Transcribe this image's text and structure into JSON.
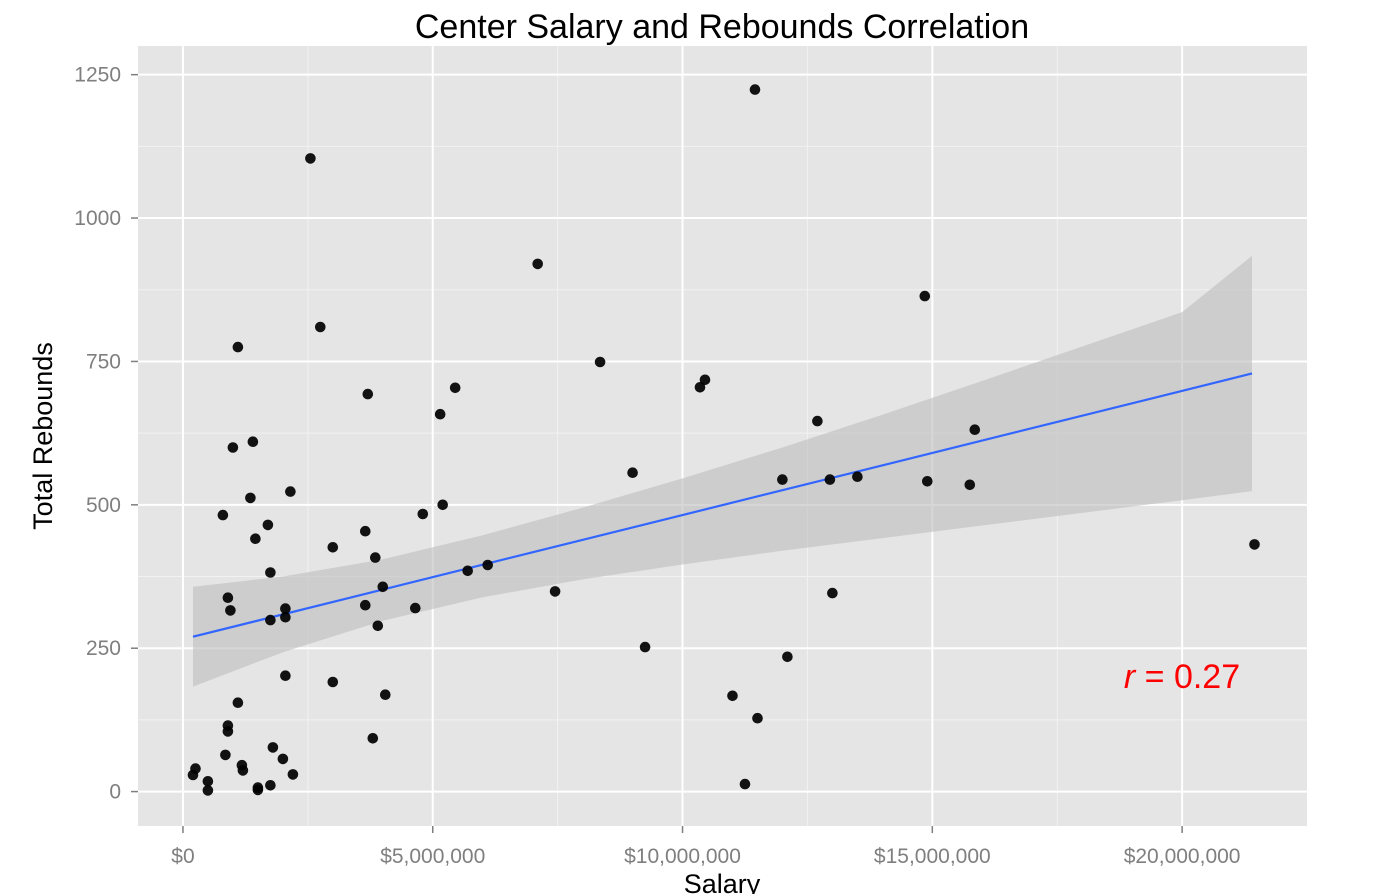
{
  "chart_data": {
    "type": "scatter",
    "title": "Center Salary and Rebounds Correlation",
    "xlabel": "Salary",
    "ylabel": "Total Rebounds",
    "xlim": [
      -900000,
      22500000
    ],
    "ylim": [
      -60,
      1300
    ],
    "x_ticks": [
      {
        "value": 0,
        "label": "$0"
      },
      {
        "value": 5000000,
        "label": "$5,000,000"
      },
      {
        "value": 10000000,
        "label": "$10,000,000"
      },
      {
        "value": 15000000,
        "label": "$15,000,000"
      },
      {
        "value": 20000000,
        "label": "$20,000,000"
      }
    ],
    "y_ticks": [
      {
        "value": 0,
        "label": "0"
      },
      {
        "value": 250,
        "label": "250"
      },
      {
        "value": 500,
        "label": "500"
      },
      {
        "value": 750,
        "label": "750"
      },
      {
        "value": 1000,
        "label": "1000"
      },
      {
        "value": 1250,
        "label": "1250"
      }
    ],
    "grid": true,
    "panel_background": "#e5e5e5",
    "grid_color": "#ffffff",
    "point_color": "#000000",
    "fit_line_color": "#3366ff",
    "confidence_band_color": "#bdbdbd",
    "fit_line": {
      "x": [
        200000,
        21400000
      ],
      "y": [
        270,
        729
      ]
    },
    "confidence_band": {
      "x": [
        200000,
        2000000,
        4000000,
        6000000,
        8000000,
        10000000,
        12000000,
        14000000,
        16000000,
        18000000,
        20000000,
        21400000
      ],
      "upper": [
        357,
        375,
        405,
        447,
        495,
        546,
        600,
        657,
        716,
        776,
        836,
        934
      ],
      "lower": [
        183,
        243,
        298,
        339,
        370,
        396,
        420,
        442,
        464,
        486,
        508,
        524
      ]
    },
    "annotation": {
      "var": "r",
      "eq": " = ",
      "value": "0.27",
      "color": "#ff0000"
    },
    "series": [
      {
        "points": [
          [
            200000,
            29
          ],
          [
            250000,
            40
          ],
          [
            500000,
            18
          ],
          [
            500000,
            2
          ],
          [
            800000,
            482
          ],
          [
            850000,
            64
          ],
          [
            900000,
            338
          ],
          [
            900000,
            115
          ],
          [
            900000,
            105
          ],
          [
            950000,
            316
          ],
          [
            1000000,
            600
          ],
          [
            1100000,
            155
          ],
          [
            1100000,
            775
          ],
          [
            1180000,
            46
          ],
          [
            1200000,
            37
          ],
          [
            1350000,
            512
          ],
          [
            1400000,
            610
          ],
          [
            1450000,
            441
          ],
          [
            1500000,
            7
          ],
          [
            1500000,
            3
          ],
          [
            1700000,
            465
          ],
          [
            1750000,
            299
          ],
          [
            1750000,
            382
          ],
          [
            1750000,
            11
          ],
          [
            1800000,
            77
          ],
          [
            2000000,
            57
          ],
          [
            2050000,
            319
          ],
          [
            2050000,
            304
          ],
          [
            2050000,
            202
          ],
          [
            2150000,
            523
          ],
          [
            2200000,
            30
          ],
          [
            2550000,
            1104
          ],
          [
            2750000,
            810
          ],
          [
            3000000,
            426
          ],
          [
            3000000,
            191
          ],
          [
            3650000,
            325
          ],
          [
            3650000,
            454
          ],
          [
            3700000,
            693
          ],
          [
            3800000,
            93
          ],
          [
            3850000,
            408
          ],
          [
            3900000,
            289
          ],
          [
            4000000,
            357
          ],
          [
            4050000,
            169
          ],
          [
            4650000,
            320
          ],
          [
            4800000,
            484
          ],
          [
            5150000,
            658
          ],
          [
            5200000,
            500
          ],
          [
            5450000,
            704
          ],
          [
            5700000,
            385
          ],
          [
            6100000,
            395
          ],
          [
            7100000,
            920
          ],
          [
            7450000,
            349
          ],
          [
            8350000,
            749
          ],
          [
            9000000,
            556
          ],
          [
            9250000,
            252
          ],
          [
            10350000,
            705
          ],
          [
            10450000,
            718
          ],
          [
            11000000,
            167
          ],
          [
            11250000,
            13
          ],
          [
            11450000,
            1224
          ],
          [
            11500000,
            128
          ],
          [
            12000000,
            544
          ],
          [
            12100000,
            235
          ],
          [
            12700000,
            646
          ],
          [
            12950000,
            544
          ],
          [
            13000000,
            346
          ],
          [
            13500000,
            549
          ],
          [
            14850000,
            864
          ],
          [
            14900000,
            541
          ],
          [
            15750000,
            535
          ],
          [
            15850000,
            631
          ],
          [
            21450000,
            431
          ]
        ]
      }
    ]
  }
}
